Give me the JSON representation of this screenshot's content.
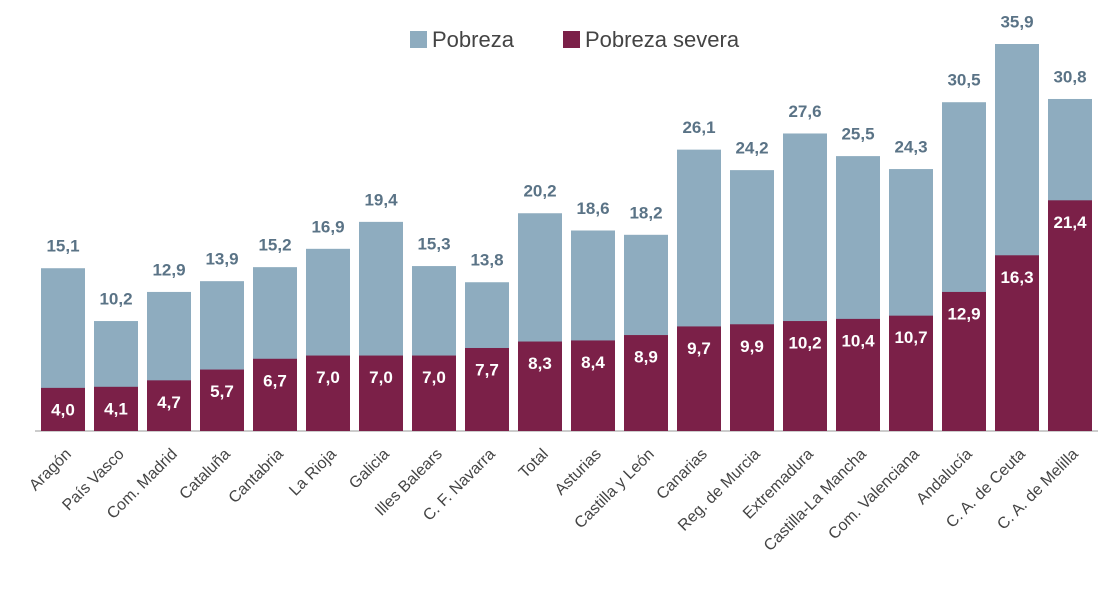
{
  "chart_data": {
    "type": "bar",
    "overlap": true,
    "categories": [
      "Aragón",
      "País Vasco",
      "Com. Madrid",
      "Cataluña",
      "Cantabria",
      "La Rioja",
      "Galicia",
      "Illes Balears",
      "C. F. Navarra",
      "Total",
      "Asturias",
      "Castilla y León",
      "Canarias",
      "Reg. de Murcia",
      "Extremadura",
      "Castilla-La Mancha",
      "Com. Valenciana",
      "Andalucía",
      "C. A. de Ceuta",
      "C. A. de Melilla"
    ],
    "series": [
      {
        "name": "Pobreza",
        "color": "#8eacbf",
        "values": [
          15.1,
          10.2,
          12.9,
          13.9,
          15.2,
          16.9,
          19.4,
          15.3,
          13.8,
          20.2,
          18.6,
          18.2,
          26.1,
          24.2,
          27.6,
          25.5,
          24.3,
          30.5,
          35.9,
          30.8
        ],
        "value_labels": [
          "15,1",
          "10,2",
          "12,9",
          "13,9",
          "15,2",
          "16,9",
          "19,4",
          "15,3",
          "13,8",
          "20,2",
          "18,6",
          "18,2",
          "26,1",
          "24,2",
          "27,6",
          "25,5",
          "24,3",
          "30,5",
          "35,9",
          "30,8"
        ]
      },
      {
        "name": "Pobreza severa",
        "color": "#7b2048",
        "values": [
          4.0,
          4.1,
          4.7,
          5.7,
          6.7,
          7.0,
          7.0,
          7.0,
          7.7,
          8.3,
          8.4,
          8.9,
          9.7,
          9.9,
          10.2,
          10.4,
          10.7,
          12.9,
          16.3,
          21.4
        ],
        "value_labels": [
          "4,0",
          "4,1",
          "4,7",
          "5,7",
          "6,7",
          "7,0",
          "7,0",
          "7,0",
          "7,7",
          "8,3",
          "8,4",
          "8,9",
          "9,7",
          "9,9",
          "10,2",
          "10,4",
          "10,7",
          "12,9",
          "16,3",
          "21,4"
        ]
      }
    ]
  }
}
